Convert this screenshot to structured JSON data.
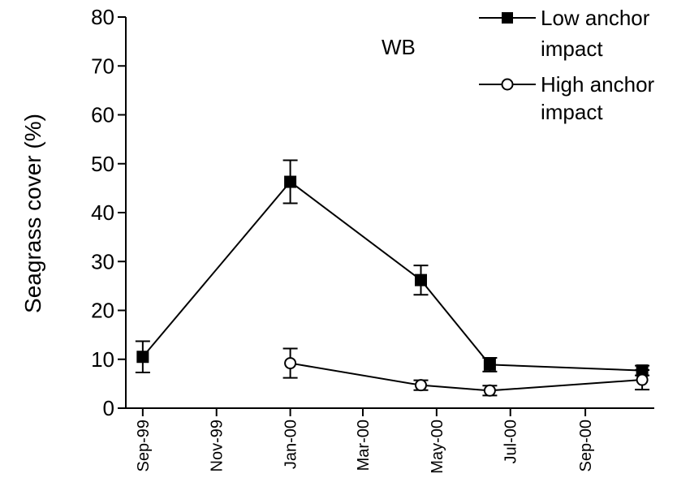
{
  "chart_data": {
    "type": "line",
    "title": "",
    "ylabel": "Seagrass cover (%)",
    "xlabel": "",
    "ylim": [
      0,
      80
    ],
    "yticks": [
      0,
      10,
      20,
      30,
      40,
      50,
      60,
      70,
      80
    ],
    "xticks": [
      {
        "label": "Sep-99",
        "date": "1999-09-01"
      },
      {
        "label": "Nov-99",
        "date": "1999-11-01"
      },
      {
        "label": "Jan-00",
        "date": "2000-01-01"
      },
      {
        "label": "Mar-00",
        "date": "2000-03-01"
      },
      {
        "label": "May-00",
        "date": "2000-05-01"
      },
      {
        "label": "Jul-00",
        "date": "2000-07-01"
      },
      {
        "label": "Sep-00",
        "date": "2000-09-01"
      }
    ],
    "xlim": [
      "1999-08-18",
      "2000-10-28"
    ],
    "grid": false,
    "legend_position": "top-right",
    "annotations": [
      {
        "text": "WB"
      }
    ],
    "series": [
      {
        "name": "Low anchor impact",
        "marker": "filled-square",
        "color": "#000000",
        "points": [
          {
            "date": "1999-09-01",
            "y": 10.5,
            "err": 3.2
          },
          {
            "date": "2000-01-01",
            "y": 46.3,
            "err": 4.4
          },
          {
            "date": "2000-04-18",
            "y": 26.2,
            "err": 3.0
          },
          {
            "date": "2000-06-14",
            "y": 8.9,
            "err": 1.4
          },
          {
            "date": "2000-10-18",
            "y": 7.7,
            "err": 1.0
          }
        ]
      },
      {
        "name": "High anchor impact",
        "marker": "open-circle",
        "color": "#000000",
        "points": [
          {
            "date": "2000-01-01",
            "y": 9.2,
            "err": 3.0
          },
          {
            "date": "2000-04-18",
            "y": 4.7,
            "err": 1.0
          },
          {
            "date": "2000-06-14",
            "y": 3.6,
            "err": 1.0
          },
          {
            "date": "2000-10-18",
            "y": 5.8,
            "err": 2.0
          }
        ]
      }
    ]
  }
}
